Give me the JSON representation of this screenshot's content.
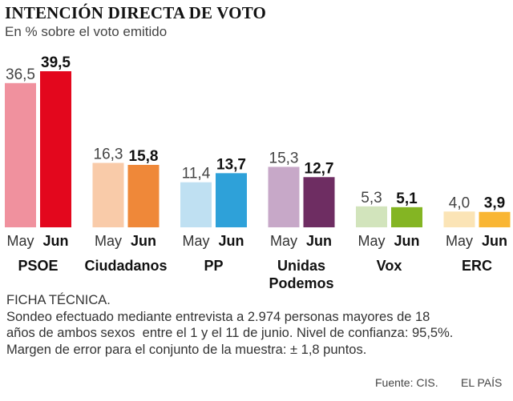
{
  "title": "INTENCIÓN DIRECTA DE VOTO",
  "subtitle": "En % sobre el voto emitido",
  "chart_data": {
    "type": "bar",
    "title": "INTENCIÓN DIRECTA DE VOTO",
    "ylabel": "En % sobre el voto emitido",
    "xlabel": "",
    "ylim": [
      0,
      39.5
    ],
    "categories": [
      "PSOE",
      "Ciudadanos",
      "PP",
      "Unidas Podemos",
      "Vox",
      "ERC"
    ],
    "category_lines": [
      [
        "PSOE"
      ],
      [
        "Ciudadanos"
      ],
      [
        "PP"
      ],
      [
        "Unidas",
        "Podemos"
      ],
      [
        "Vox"
      ],
      [
        "ERC"
      ]
    ],
    "series": [
      {
        "name": "May",
        "values": [
          36.5,
          16.3,
          11.4,
          15.3,
          5.3,
          4.0
        ],
        "labels": [
          "36,5",
          "16,3",
          "11,4",
          "15,3",
          "5,3",
          "4,0"
        ],
        "colors": [
          "#f0919e",
          "#f9cba9",
          "#bfe0f2",
          "#c7a8c8",
          "#d2e4bc",
          "#fbe4b6"
        ]
      },
      {
        "name": "Jun",
        "values": [
          39.5,
          15.8,
          13.7,
          12.7,
          5.1,
          3.9
        ],
        "labels": [
          "39,5",
          "15,8",
          "13,7",
          "12,7",
          "5,1",
          "3,9"
        ],
        "colors": [
          "#e3071d",
          "#ef8839",
          "#2ea1d9",
          "#6e2d62",
          "#84b523",
          "#f9b634"
        ]
      }
    ],
    "grid": false,
    "legend": "none"
  },
  "ficha": {
    "heading": "FICHA TÉCNICA.",
    "lines": [
      "Sondeo efectuado mediante entrevista a 2.974 personas mayores de 18",
      "años de ambos sexos  entre el 1 y el 11 de junio. Nivel de confianza: 95,5%.",
      "Margen de error para el conjunto de la muestra: ± 1,8 puntos."
    ]
  },
  "footer": {
    "source": "Fuente: CIS.",
    "brand": "EL PAÍS"
  }
}
